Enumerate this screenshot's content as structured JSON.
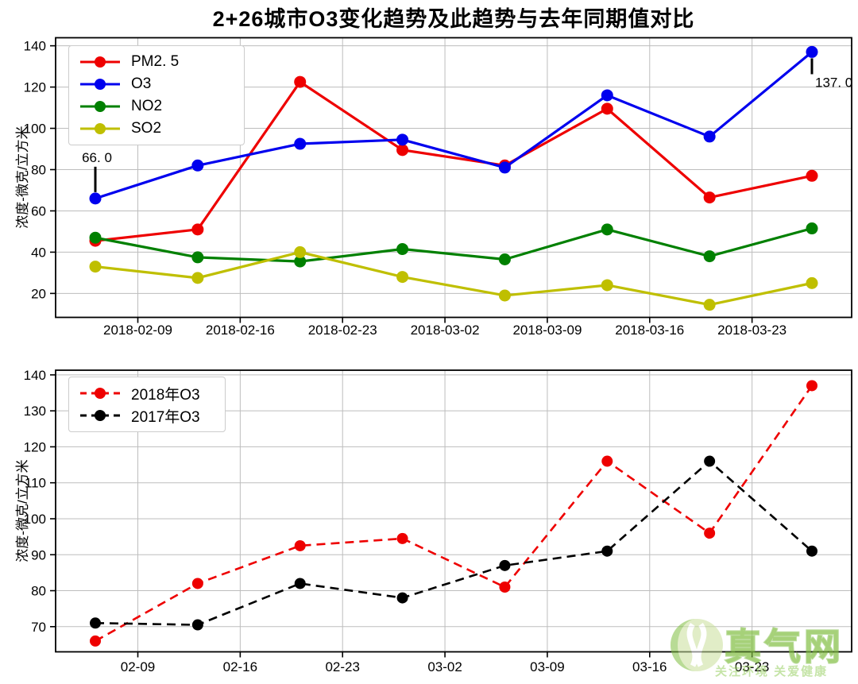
{
  "title": "2+26城市O3变化趋势及此趋势与去年同期值对比",
  "watermark": {
    "name": "真气网",
    "tagline": "关注环境 关爱健康"
  },
  "chart_data": [
    {
      "type": "line",
      "title": "",
      "xlabel": "",
      "ylabel": "浓度-微克/立方米",
      "x_dates": [
        "02-06",
        "02-13",
        "02-20",
        "02-27",
        "03-06",
        "03-13",
        "03-20",
        "03-27"
      ],
      "x_ticklabels": [
        "2018-02-09",
        "2018-02-16",
        "2018-02-23",
        "2018-03-02",
        "2018-03-09",
        "2018-03-16",
        "2018-03-23"
      ],
      "yticks": [
        20,
        40,
        60,
        80,
        100,
        120,
        140
      ],
      "ylim": [
        8,
        144
      ],
      "grid": true,
      "legend_position": "upper left",
      "series": [
        {
          "name": "PM2. 5",
          "color": "#ee0000",
          "style": "solid",
          "values": [
            45.5,
            51,
            122.5,
            89.5,
            82,
            109.5,
            66.5,
            77
          ]
        },
        {
          "name": "O3",
          "color": "#0000ee",
          "style": "solid",
          "values": [
            66,
            82,
            92.5,
            94.5,
            81,
            116,
            96,
            137
          ]
        },
        {
          "name": "NO2",
          "color": "#008000",
          "style": "solid",
          "values": [
            47,
            37.5,
            35.5,
            41.5,
            36.5,
            51,
            38,
            51.5
          ]
        },
        {
          "name": "SO2",
          "color": "#bfbf00",
          "style": "solid",
          "values": [
            33,
            27.5,
            40,
            28,
            19,
            24,
            14.5,
            25
          ]
        }
      ],
      "annotations": [
        {
          "series": 1,
          "point": 0,
          "label": "66. 0",
          "placement": "above"
        },
        {
          "series": 1,
          "point": 7,
          "label": "137. 0",
          "placement": "below-right"
        }
      ]
    },
    {
      "type": "line",
      "title": "",
      "xlabel": "",
      "ylabel": "浓度-微克/立方米",
      "x_dates": [
        "02-06",
        "02-13",
        "02-20",
        "02-27",
        "03-06",
        "03-13",
        "03-20",
        "03-27"
      ],
      "x_ticklabels": [
        "02-09",
        "02-16",
        "02-23",
        "03-02",
        "03-09",
        "03-16",
        "03-23"
      ],
      "yticks": [
        70,
        80,
        90,
        100,
        110,
        120,
        130,
        140
      ],
      "ylim": [
        63,
        141
      ],
      "grid": true,
      "legend_position": "upper left",
      "series": [
        {
          "name": "2018年O3",
          "color": "#ee0000",
          "style": "dashed",
          "values": [
            66,
            82,
            92.5,
            94.5,
            81,
            116,
            96,
            137
          ]
        },
        {
          "name": "2017年O3",
          "color": "#000000",
          "style": "dashed",
          "values": [
            71,
            70.5,
            82,
            78,
            87,
            91,
            116,
            91
          ]
        }
      ],
      "annotations": []
    }
  ]
}
